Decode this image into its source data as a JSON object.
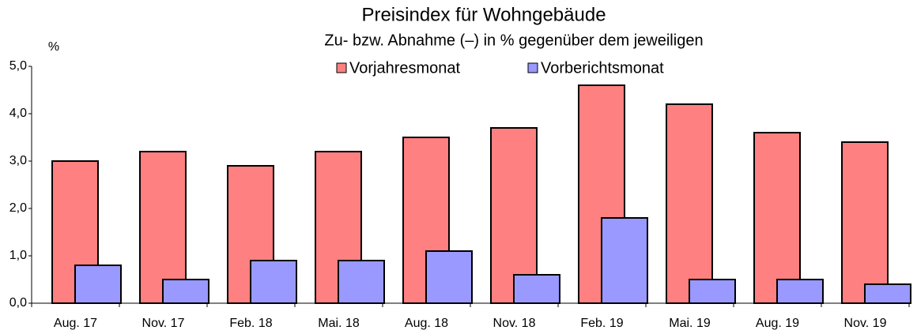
{
  "chart_data": {
    "type": "bar",
    "title": "Preisindex für Wohngebäude",
    "subtitle": "Zu- bzw. Abnahme (–) in % gegenüber dem jeweiligen",
    "y_label": "%",
    "categories": [
      "Aug. 17",
      "Nov. 17",
      "Feb. 18",
      "Mai. 18",
      "Aug. 18",
      "Nov. 18",
      "Feb. 19",
      "Mai. 19",
      "Aug. 19",
      "Nov. 19"
    ],
    "series": [
      {
        "name": "Vorjahresmonat",
        "color": "#ff8080",
        "values": [
          3.0,
          3.2,
          2.9,
          3.2,
          3.5,
          3.7,
          4.6,
          4.2,
          3.6,
          3.4
        ]
      },
      {
        "name": "Vorberichtsmonat",
        "color": "#9999ff",
        "values": [
          0.8,
          0.5,
          0.9,
          0.9,
          1.1,
          0.6,
          1.8,
          0.5,
          0.5,
          0.4
        ]
      }
    ],
    "ylim": [
      0,
      5
    ],
    "yticks": [
      {
        "value": 0,
        "label": "0,0"
      },
      {
        "value": 1,
        "label": "1,0"
      },
      {
        "value": 2,
        "label": "2,0"
      },
      {
        "value": 3,
        "label": "3,0"
      },
      {
        "value": 4,
        "label": "4,0"
      },
      {
        "value": 5,
        "label": "5,0"
      }
    ],
    "grid": false
  }
}
